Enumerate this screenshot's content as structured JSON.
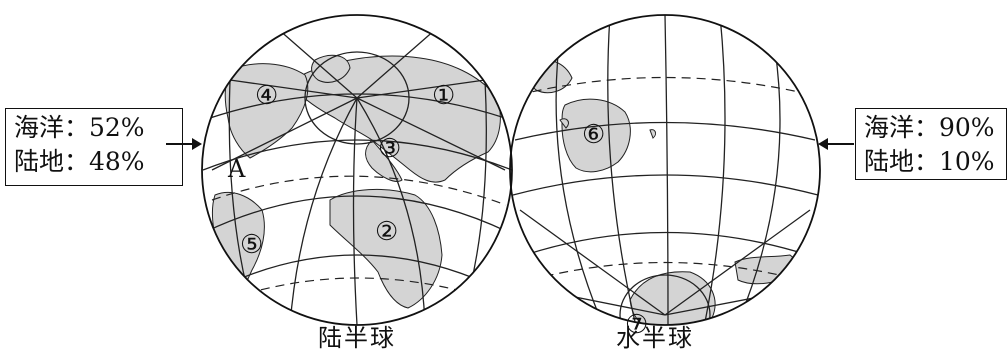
{
  "land_hemisphere": {
    "title": "陆半球",
    "stats": {
      "ocean": "海洋：52%",
      "land": "陆地：48%"
    },
    "labels": [
      "①",
      "②",
      "③",
      "④",
      "⑤",
      "A"
    ]
  },
  "water_hemisphere": {
    "title": "水半球",
    "stats": {
      "ocean": "海洋：90%",
      "land": "陆地：10%"
    },
    "labels": [
      "⑥",
      "⑦"
    ]
  }
}
